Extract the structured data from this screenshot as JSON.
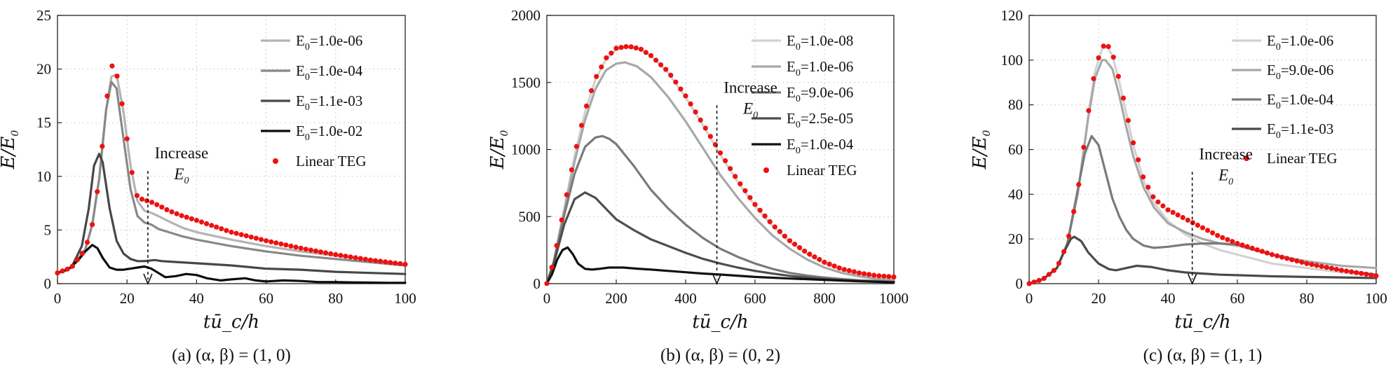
{
  "figure": {
    "xlabel": "tū_c/h",
    "ylabel": "E/E_0"
  },
  "chart_data": [
    {
      "type": "line",
      "panel": "a",
      "caption": "(a)  (α, β) = (1, 0)",
      "xlim": [
        0,
        100
      ],
      "ylim": [
        0,
        25
      ],
      "xticks": [
        0,
        20,
        40,
        60,
        80,
        100
      ],
      "yticks": [
        0,
        5,
        10,
        15,
        20,
        25
      ],
      "xlabel": "tū_c/h",
      "ylabel": "E/E_0",
      "annotation": {
        "line1": "Increase",
        "line2": "E_0",
        "at_x": 26,
        "from_y": 10.5,
        "to_y": 0
      },
      "series": [
        {
          "name": "E_0=1.0e-06",
          "style": "line",
          "color": "#b4b4b4",
          "x": [
            0,
            4,
            8,
            10,
            12,
            14,
            15.5,
            17,
            19,
            21,
            23,
            25,
            27,
            29,
            32,
            36,
            40,
            50,
            60,
            70,
            80,
            90,
            100
          ],
          "y": [
            1,
            1.5,
            3.2,
            5.5,
            9.8,
            16.2,
            19.3,
            19.5,
            16,
            11,
            7.7,
            6.8,
            6.6,
            6.3,
            5.8,
            5.2,
            4.8,
            4.1,
            3.5,
            3.0,
            2.6,
            2.2,
            1.8
          ]
        },
        {
          "name": "E_0=1.0e-04",
          "style": "line",
          "color": "#888888",
          "x": [
            0,
            4,
            8,
            10,
            12,
            14,
            15.5,
            17,
            19,
            21,
            23,
            25,
            27,
            29,
            32,
            36,
            40,
            50,
            60,
            70,
            80,
            90,
            100
          ],
          "y": [
            1,
            1.5,
            3.2,
            5.5,
            9.8,
            16.2,
            18.8,
            18.2,
            13.5,
            8.8,
            6.3,
            5.7,
            5.5,
            5.1,
            4.8,
            4.4,
            4.1,
            3.5,
            3.0,
            2.6,
            2.3,
            2.0,
            1.7
          ]
        },
        {
          "name": "E_0=1.1e-03",
          "style": "line",
          "color": "#474747",
          "x": [
            0,
            4,
            7,
            9,
            10.5,
            12,
            13,
            15,
            17,
            19,
            21,
            23,
            25,
            28,
            30,
            35,
            40,
            50,
            60,
            70,
            80,
            90,
            100
          ],
          "y": [
            1,
            1.5,
            3.5,
            7,
            11,
            12.1,
            11.3,
            7,
            4,
            2.8,
            2.3,
            2.1,
            2.1,
            2.2,
            2.1,
            2.0,
            1.9,
            1.7,
            1.4,
            1.3,
            1.1,
            1.0,
            0.9
          ]
        },
        {
          "name": "E_0=1.0e-02",
          "style": "line",
          "color": "#0c0c0c",
          "x": [
            0,
            3,
            6,
            8,
            10,
            11.5,
            13,
            15,
            17,
            19,
            21,
            23,
            25,
            27,
            29,
            31,
            34,
            37,
            40,
            43,
            47,
            50,
            54,
            57,
            60,
            65,
            70,
            75,
            80,
            85,
            90,
            95,
            100
          ],
          "y": [
            1,
            1.3,
            2.2,
            3.0,
            3.6,
            3.3,
            2.4,
            1.5,
            1.3,
            1.3,
            1.4,
            1.5,
            1.6,
            1.4,
            1.0,
            0.6,
            0.7,
            0.9,
            0.8,
            0.5,
            0.3,
            0.4,
            0.5,
            0.3,
            0.2,
            0.3,
            0.25,
            0.15,
            0.15,
            0.12,
            0.1,
            0.08,
            0.08
          ]
        },
        {
          "name": "Linear TEG",
          "style": "dots",
          "color": "#ee1111",
          "x": [
            0,
            4,
            8,
            10,
            12,
            14,
            15.5,
            17,
            19,
            21,
            23,
            25,
            27,
            29,
            32,
            36,
            40,
            50,
            60,
            70,
            80,
            90,
            100
          ],
          "y": [
            1,
            1.5,
            3.2,
            5.5,
            9.8,
            16.8,
            20.4,
            19.6,
            16,
            11,
            8,
            7.8,
            7.6,
            7.3,
            6.8,
            6.3,
            5.9,
            4.8,
            4.0,
            3.3,
            2.7,
            2.2,
            1.8
          ]
        }
      ]
    },
    {
      "type": "line",
      "panel": "b",
      "caption": "(b)  (α, β) = (0, 2)",
      "xlim": [
        0,
        1000
      ],
      "ylim": [
        0,
        2000
      ],
      "xticks": [
        0,
        200,
        400,
        600,
        800,
        1000
      ],
      "yticks": [
        0,
        500,
        1000,
        1500,
        2000
      ],
      "xlabel": "tū_c/h",
      "ylabel": "E/E_0",
      "annotation": {
        "line1": "Increase",
        "line2": "E_0",
        "at_x": 490,
        "from_y": 1330,
        "to_y": 0
      },
      "series": [
        {
          "name": "E_0=1.0e-08",
          "style": "line",
          "color": "#d2d2d2",
          "x": [
            0,
            20,
            50,
            80,
            110,
            140,
            170,
            200,
            235,
            270,
            300,
            350,
            400,
            450,
            500,
            550,
            600,
            650,
            700,
            750,
            800,
            850,
            900,
            950,
            1000
          ],
          "y": [
            1,
            170,
            560,
            950,
            1280,
            1520,
            1670,
            1745,
            1765,
            1745,
            1700,
            1570,
            1390,
            1180,
            960,
            760,
            580,
            430,
            310,
            220,
            150,
            100,
            70,
            45,
            30
          ]
        },
        {
          "name": "E_0=1.0e-06",
          "style": "line",
          "color": "#a8a8a8",
          "x": [
            0,
            20,
            50,
            80,
            110,
            140,
            170,
            200,
            225,
            260,
            300,
            350,
            400,
            450,
            500,
            550,
            600,
            650,
            700,
            750,
            800,
            850,
            900,
            950,
            1000
          ],
          "y": [
            1,
            165,
            540,
            910,
            1220,
            1450,
            1590,
            1640,
            1650,
            1620,
            1540,
            1390,
            1210,
            1010,
            810,
            640,
            490,
            360,
            260,
            180,
            120,
            80,
            55,
            35,
            25
          ]
        },
        {
          "name": "E_0=9.0e-06",
          "style": "line",
          "color": "#7a7a7a",
          "x": [
            0,
            20,
            50,
            80,
            110,
            140,
            160,
            180,
            200,
            250,
            300,
            350,
            400,
            450,
            500,
            550,
            600,
            650,
            700,
            750,
            800,
            850,
            900,
            950,
            1000
          ],
          "y": [
            1,
            160,
            510,
            820,
            1020,
            1090,
            1100,
            1080,
            1040,
            880,
            700,
            560,
            440,
            340,
            260,
            200,
            150,
            110,
            80,
            60,
            45,
            35,
            25,
            20,
            15
          ]
        },
        {
          "name": "E_0=2.5e-05",
          "style": "line",
          "color": "#4e4e4e",
          "x": [
            0,
            20,
            50,
            80,
            110,
            140,
            170,
            200,
            250,
            300,
            350,
            400,
            450,
            500,
            550,
            600,
            650,
            700,
            750,
            800,
            850,
            900,
            950,
            1000
          ],
          "y": [
            1,
            150,
            440,
            630,
            680,
            640,
            560,
            480,
            400,
            330,
            280,
            230,
            185,
            150,
            120,
            95,
            75,
            58,
            45,
            35,
            27,
            20,
            15,
            10
          ]
        },
        {
          "name": "E_0=1.0e-04",
          "style": "line",
          "color": "#111111",
          "x": [
            0,
            15,
            30,
            45,
            60,
            75,
            90,
            110,
            130,
            150,
            180,
            220,
            260,
            300,
            350,
            400,
            450,
            500,
            600,
            700,
            800,
            900,
            1000
          ],
          "y": [
            1,
            70,
            180,
            250,
            270,
            220,
            150,
            110,
            105,
            110,
            120,
            120,
            112,
            105,
            95,
            85,
            75,
            68,
            50,
            38,
            28,
            18,
            10
          ]
        },
        {
          "name": "Linear TEG",
          "style": "dots",
          "color": "#ee1111",
          "x": [
            0,
            20,
            50,
            80,
            110,
            140,
            170,
            200,
            235,
            270,
            300,
            350,
            400,
            450,
            500,
            550,
            600,
            650,
            700,
            750,
            800,
            850,
            900,
            950,
            1000
          ],
          "y": [
            1,
            170,
            570,
            960,
            1290,
            1530,
            1680,
            1755,
            1770,
            1750,
            1700,
            1580,
            1400,
            1190,
            975,
            770,
            590,
            440,
            320,
            230,
            160,
            110,
            80,
            60,
            50
          ]
        }
      ]
    },
    {
      "type": "line",
      "panel": "c",
      "caption": "(c)  (α, β) = (1, 1)",
      "xlim": [
        0,
        100
      ],
      "ylim": [
        0,
        120
      ],
      "xticks": [
        0,
        20,
        40,
        60,
        80,
        100
      ],
      "yticks": [
        0,
        20,
        40,
        60,
        80,
        100,
        120
      ],
      "xlabel": "tū_c/h",
      "ylabel": "E/E_0",
      "annotation": {
        "line1": "Increase",
        "line2": "E_0",
        "at_x": 47,
        "from_y": 50,
        "to_y": 0
      },
      "series": [
        {
          "name": "E_0=1.0e-06",
          "style": "line",
          "color": "#d2d2d2",
          "x": [
            0,
            4,
            8,
            11,
            14,
            17,
            19,
            21,
            22.5,
            24,
            26,
            28,
            30,
            33,
            36,
            40,
            45,
            50,
            55,
            60,
            70,
            80,
            90,
            100
          ],
          "y": [
            0,
            2,
            7,
            18,
            40,
            75,
            95,
            105,
            106,
            102,
            90,
            76,
            62,
            46,
            36,
            28,
            22,
            18,
            15,
            13,
            9,
            7,
            5,
            3.5
          ]
        },
        {
          "name": "E_0=9.0e-06",
          "style": "line",
          "color": "#a8a8a8",
          "x": [
            0,
            4,
            8,
            11,
            14,
            17,
            19,
            21,
            22,
            24,
            26,
            28,
            30,
            33,
            36,
            40,
            45,
            50,
            55,
            60,
            70,
            80,
            90,
            100
          ],
          "y": [
            0,
            2,
            7,
            18,
            40,
            74,
            92,
            100,
            100,
            96,
            84,
            70,
            57,
            43,
            34,
            27,
            23,
            20,
            18,
            17,
            13,
            10,
            8,
            7
          ]
        },
        {
          "name": "E_0=1.0e-04",
          "style": "line",
          "color": "#7a7a7a",
          "x": [
            0,
            4,
            8,
            11,
            14,
            16,
            18,
            20,
            22,
            24,
            26,
            28,
            30,
            33,
            36,
            40,
            45,
            50,
            55,
            60,
            65,
            70,
            75,
            80,
            90,
            100
          ],
          "y": [
            0,
            2,
            7,
            18,
            42,
            58,
            66,
            62,
            50,
            38,
            30,
            24,
            20,
            17,
            16,
            16.5,
            17.5,
            18,
            18,
            17.5,
            15,
            13,
            11,
            9,
            6,
            4
          ]
        },
        {
          "name": "E_0=1.1e-03",
          "style": "line",
          "color": "#4a4a4a",
          "x": [
            0,
            4,
            8,
            10,
            12,
            13,
            15,
            17,
            20,
            23,
            25,
            28,
            31,
            35,
            40,
            45,
            50,
            55,
            60,
            70,
            80,
            90,
            100
          ],
          "y": [
            0,
            2,
            7,
            14,
            20,
            21,
            19,
            14,
            9,
            6.5,
            6,
            7,
            8,
            7.5,
            6,
            5,
            4.5,
            4,
            3.8,
            3.3,
            3.0,
            2.8,
            2.5
          ]
        },
        {
          "name": "Linear TEG",
          "style": "dots",
          "color": "#ee1111",
          "x": [
            0,
            4,
            8,
            11,
            14,
            17,
            19,
            21,
            22.5,
            24,
            26,
            28,
            30,
            33,
            36,
            40,
            45,
            50,
            55,
            60,
            70,
            80,
            90,
            100
          ],
          "y": [
            0,
            2,
            7,
            18,
            41,
            76,
            96,
            106,
            107,
            103,
            91,
            77,
            63,
            47,
            38,
            33,
            29,
            25,
            21,
            18,
            13,
            9,
            6,
            3.5
          ]
        }
      ]
    }
  ]
}
